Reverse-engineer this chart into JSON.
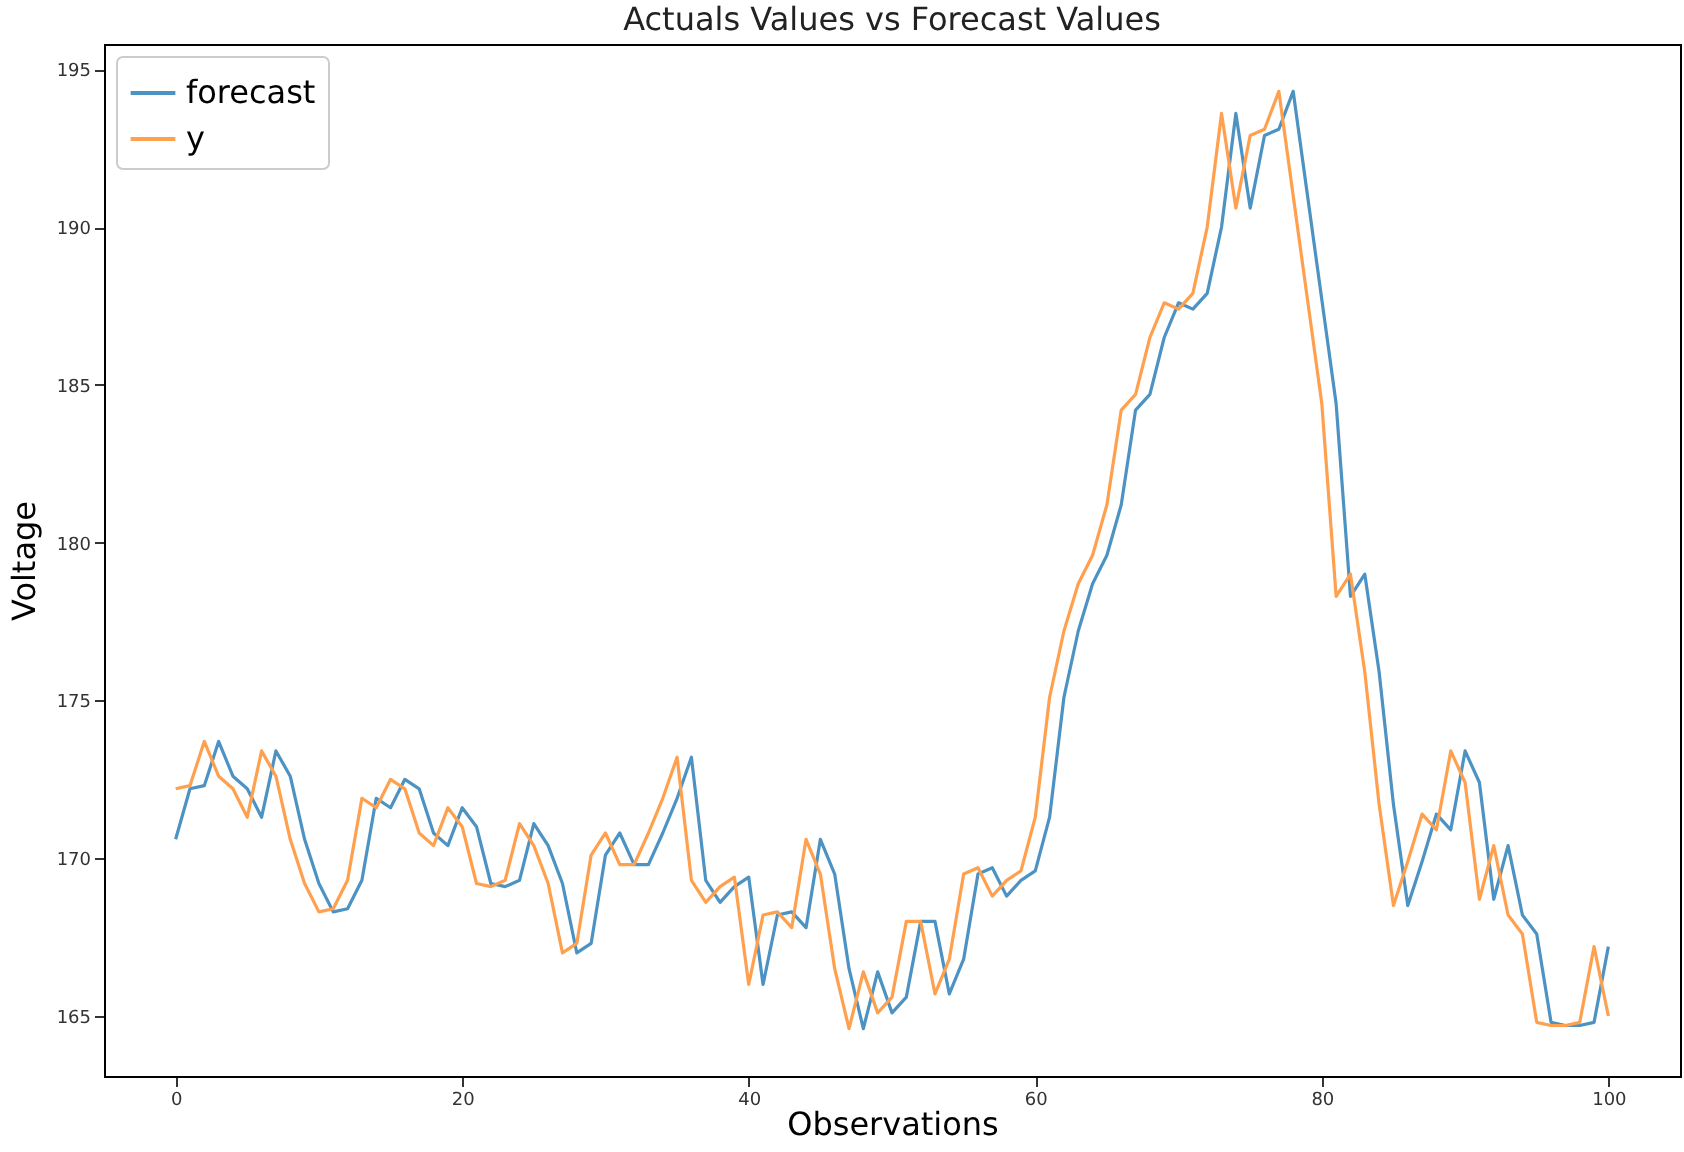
{
  "chart_data": {
    "type": "line",
    "title": "Actuals Values vs Forecast Values",
    "xlabel": "Observations",
    "ylabel": "Voltage",
    "x": [
      0,
      1,
      2,
      3,
      4,
      5,
      6,
      7,
      8,
      9,
      10,
      11,
      12,
      13,
      14,
      15,
      16,
      17,
      18,
      19,
      20,
      21,
      22,
      23,
      24,
      25,
      26,
      27,
      28,
      29,
      30,
      31,
      32,
      33,
      34,
      35,
      36,
      37,
      38,
      39,
      40,
      41,
      42,
      43,
      44,
      45,
      46,
      47,
      48,
      49,
      50,
      51,
      52,
      53,
      54,
      55,
      56,
      57,
      58,
      59,
      60,
      61,
      62,
      63,
      64,
      65,
      66,
      67,
      68,
      69,
      70,
      71,
      72,
      73,
      74,
      75,
      76,
      77,
      78,
      79,
      80,
      81,
      82,
      83,
      84,
      85,
      86,
      87,
      88,
      89,
      90,
      91,
      92,
      93,
      94,
      95,
      96,
      97,
      98,
      99,
      100
    ],
    "series": [
      {
        "name": "forecast",
        "color": "#4c92c3",
        "values": [
          170.6,
          172.2,
          172.3,
          173.7,
          172.6,
          172.2,
          171.3,
          173.4,
          172.6,
          170.6,
          169.2,
          168.3,
          168.4,
          169.3,
          171.9,
          171.6,
          172.5,
          172.2,
          170.8,
          170.4,
          171.6,
          171.0,
          169.2,
          169.1,
          169.3,
          171.1,
          170.4,
          169.2,
          167.0,
          167.3,
          170.1,
          170.8,
          169.8,
          169.8,
          170.8,
          171.9,
          173.2,
          169.3,
          168.6,
          169.1,
          169.4,
          166.0,
          168.2,
          168.3,
          167.8,
          170.6,
          169.5,
          166.5,
          164.6,
          166.4,
          165.1,
          165.6,
          168.0,
          168.0,
          165.7,
          166.8,
          169.5,
          169.7,
          168.8,
          169.3,
          169.6,
          171.3,
          175.1,
          177.2,
          178.7,
          179.6,
          181.2,
          184.2,
          184.7,
          186.5,
          187.6,
          187.4,
          187.9,
          190.0,
          193.6,
          190.6,
          192.9,
          193.1,
          194.3,
          191.0,
          187.7,
          184.4,
          178.3,
          179.0,
          175.9,
          171.7,
          168.5,
          169.9,
          171.4,
          170.9,
          173.4,
          172.4,
          168.7,
          170.4,
          168.2,
          167.6,
          164.8,
          164.7,
          164.7,
          164.8,
          167.2
        ]
      },
      {
        "name": "y",
        "color": "#ffa04f",
        "values": [
          172.2,
          172.3,
          173.7,
          172.6,
          172.2,
          171.3,
          173.4,
          172.6,
          170.6,
          169.2,
          168.3,
          168.4,
          169.3,
          171.9,
          171.6,
          172.5,
          172.2,
          170.8,
          170.4,
          171.6,
          171.0,
          169.2,
          169.1,
          169.3,
          171.1,
          170.4,
          169.2,
          167.0,
          167.3,
          170.1,
          170.8,
          169.8,
          169.8,
          170.8,
          171.9,
          173.2,
          169.3,
          168.6,
          169.1,
          169.4,
          166.0,
          168.2,
          168.3,
          167.8,
          170.6,
          169.5,
          166.5,
          164.6,
          166.4,
          165.1,
          165.6,
          168.0,
          168.0,
          165.7,
          166.8,
          169.5,
          169.7,
          168.8,
          169.3,
          169.6,
          171.3,
          175.1,
          177.2,
          178.7,
          179.6,
          181.2,
          184.2,
          184.7,
          186.5,
          187.6,
          187.4,
          187.9,
          190.0,
          193.6,
          190.6,
          192.9,
          193.1,
          194.3,
          191.0,
          187.7,
          184.4,
          178.3,
          179.0,
          175.9,
          171.7,
          168.5,
          169.9,
          171.4,
          170.9,
          173.4,
          172.4,
          168.7,
          170.4,
          168.2,
          167.6,
          164.8,
          164.7,
          164.7,
          164.8,
          167.2,
          165.0
        ]
      }
    ],
    "xlim": [
      -5,
      105
    ],
    "xticks": [
      0,
      20,
      40,
      60,
      80,
      100
    ],
    "ylim": [
      163.1,
      195.8
    ],
    "yticks": [
      165,
      170,
      175,
      180,
      185,
      190,
      195
    ],
    "legend": "top left",
    "marker": "none",
    "line_style": "solid"
  }
}
